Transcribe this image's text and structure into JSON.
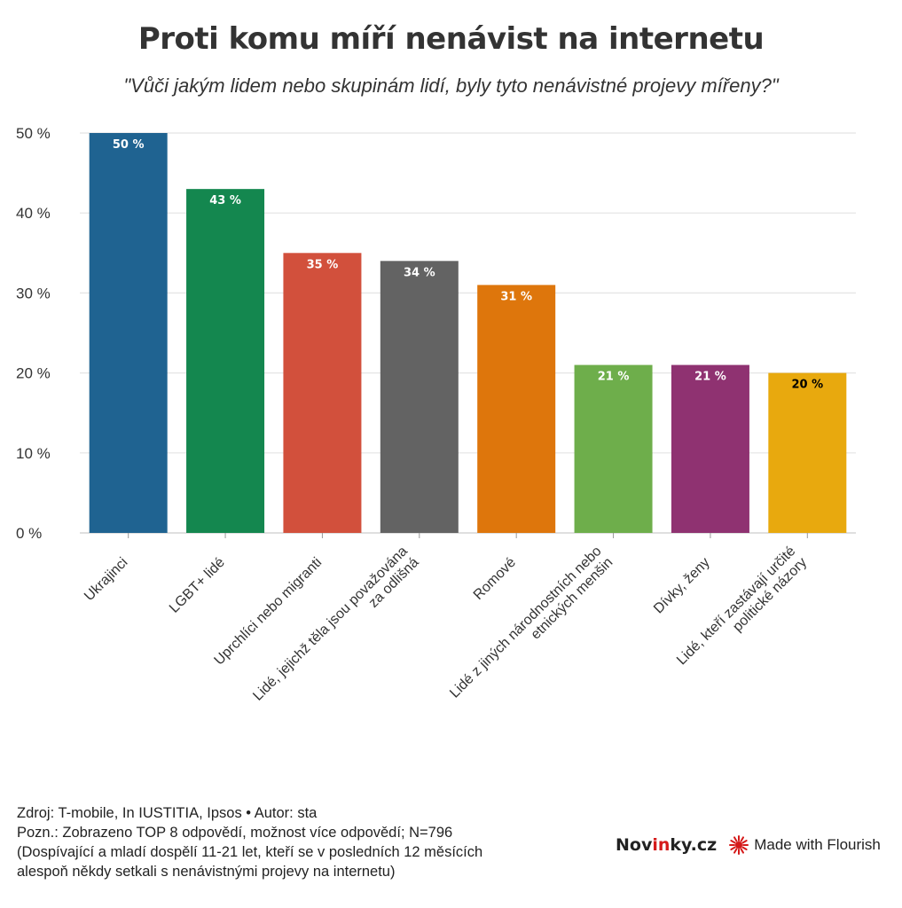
{
  "chart_data": {
    "type": "bar",
    "title": "Proti komu míří nenávist na internetu",
    "subtitle": "\"Vůči jakým lidem nebo skupinám lidí, byly tyto nenávistné projevy mířeny?\"",
    "categories": [
      [
        "Ukrajinci"
      ],
      [
        "LGBT+ lidé"
      ],
      [
        "Uprchlíci nebo migranti"
      ],
      [
        "Lidé, jejichž těla jsou považována",
        "za odlišná"
      ],
      [
        "Romové"
      ],
      [
        "Lidé z jiných národnostních nebo",
        "etnických menšin"
      ],
      [
        "Dívky,  ženy"
      ],
      [
        "Lidé, kteří zastávají určité",
        "politické názory"
      ]
    ],
    "values": [
      50,
      43,
      35,
      34,
      31,
      21,
      21,
      20
    ],
    "value_labels": [
      "50 %",
      "43 %",
      "35 %",
      "34 %",
      "31 %",
      "21 %",
      "21 %",
      "20 %"
    ],
    "colors": [
      "#1f6391",
      "#14874f",
      "#d2503c",
      "#636363",
      "#de760c",
      "#6eae4b",
      "#8f3271",
      "#e8a90e"
    ],
    "label_colors": [
      "#ffffff",
      "#ffffff",
      "#ffffff",
      "#ffffff",
      "#ffffff",
      "#ffffff",
      "#ffffff",
      "#000000"
    ],
    "ylim": [
      0,
      50
    ],
    "yticks": [
      0,
      10,
      20,
      30,
      40,
      50
    ],
    "ytick_labels": [
      "0 %",
      "10 %",
      "20 %",
      "30 %",
      "40 %",
      "50 %"
    ],
    "xlabel": "",
    "ylabel": "",
    "grid": true,
    "legend": "none"
  },
  "footer": {
    "source": "Zdroj: T-mobile, In IUSTITIA, Ipsos • Autor: sta",
    "note1": "Pozn.: Zobrazeno TOP 8 odpovědí, možnost více odpovědí; N=796",
    "note2": "(Dospívající a mladí dospělí 11-21 let, kteří se v posledních 12 měsících",
    "note3": "alespoň někdy setkali s nenávistnými projevy na internetu)"
  },
  "brand": {
    "novinky_a": "Nov",
    "novinky_b": "in",
    "novinky_c": "ky.cz",
    "flourish": "Made with Flourish",
    "accent_color": "#d51a1a",
    "flourish_icon": "flourish-sun-icon"
  }
}
